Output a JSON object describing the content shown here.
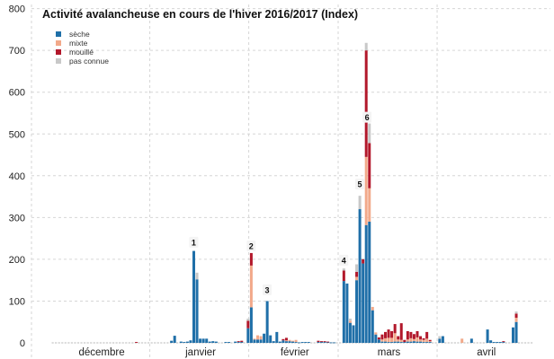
{
  "chart_data": {
    "type": "bar",
    "stacked": true,
    "title": "Activité avalancheuse en cours de l'hiver 2016/2017 (Index)",
    "xlabel": "",
    "ylabel": "",
    "ylim": [
      0,
      800
    ],
    "yticks": [
      0,
      100,
      200,
      300,
      400,
      500,
      600,
      700,
      800
    ],
    "months": [
      "décembre",
      "janvier",
      "février",
      "mars",
      "avril"
    ],
    "month_start_day_index": [
      0,
      31,
      62,
      90,
      121
    ],
    "total_days": 151,
    "legend_position": "top-left",
    "grid": true,
    "series": [
      {
        "name": "sèche",
        "color": "#1f6fa8"
      },
      {
        "name": "mixte",
        "color": "#f2a98a"
      },
      {
        "name": "mouillé",
        "color": "#b2182b"
      },
      {
        "name": "pas connue",
        "color": "#c8c8c8"
      }
    ],
    "days": [
      {
        "i": 26,
        "v": [
          0,
          0,
          2,
          0
        ]
      },
      {
        "i": 37,
        "v": [
          5,
          0,
          0,
          0
        ]
      },
      {
        "i": 38,
        "v": [
          17,
          0,
          0,
          0
        ]
      },
      {
        "i": 40,
        "v": [
          3,
          0,
          0,
          0
        ]
      },
      {
        "i": 41,
        "v": [
          2,
          0,
          0,
          0
        ]
      },
      {
        "i": 42,
        "v": [
          3,
          0,
          0,
          0
        ]
      },
      {
        "i": 43,
        "v": [
          6,
          0,
          0,
          0
        ]
      },
      {
        "i": 44,
        "v": [
          220,
          0,
          0,
          0
        ]
      },
      {
        "i": 45,
        "v": [
          152,
          0,
          0,
          16
        ]
      },
      {
        "i": 46,
        "v": [
          10,
          0,
          0,
          0
        ]
      },
      {
        "i": 47,
        "v": [
          10,
          0,
          0,
          0
        ]
      },
      {
        "i": 48,
        "v": [
          10,
          0,
          0,
          0
        ]
      },
      {
        "i": 49,
        "v": [
          3,
          0,
          0,
          0
        ]
      },
      {
        "i": 50,
        "v": [
          4,
          0,
          0,
          0
        ]
      },
      {
        "i": 51,
        "v": [
          3,
          0,
          0,
          0
        ]
      },
      {
        "i": 54,
        "v": [
          2,
          0,
          0,
          0
        ]
      },
      {
        "i": 55,
        "v": [
          2,
          0,
          0,
          0
        ]
      },
      {
        "i": 57,
        "v": [
          3,
          0,
          0,
          0
        ]
      },
      {
        "i": 58,
        "v": [
          2,
          0,
          2,
          0
        ]
      },
      {
        "i": 59,
        "v": [
          2,
          0,
          3,
          0
        ]
      },
      {
        "i": 61,
        "v": [
          35,
          0,
          18,
          5
        ]
      },
      {
        "i": 62,
        "v": [
          85,
          100,
          30,
          0
        ]
      },
      {
        "i": 63,
        "v": [
          8,
          2,
          0,
          0
        ]
      },
      {
        "i": 64,
        "v": [
          8,
          10,
          0,
          0
        ]
      },
      {
        "i": 65,
        "v": [
          8,
          8,
          0,
          0
        ]
      },
      {
        "i": 66,
        "v": [
          22,
          0,
          0,
          0
        ]
      },
      {
        "i": 67,
        "v": [
          100,
          0,
          0,
          0
        ]
      },
      {
        "i": 68,
        "v": [
          18,
          0,
          0,
          0
        ]
      },
      {
        "i": 69,
        "v": [
          4,
          0,
          0,
          0
        ]
      },
      {
        "i": 70,
        "v": [
          26,
          0,
          0,
          0
        ]
      },
      {
        "i": 71,
        "v": [
          3,
          0,
          0,
          0
        ]
      },
      {
        "i": 72,
        "v": [
          6,
          0,
          3,
          0
        ]
      },
      {
        "i": 73,
        "v": [
          4,
          2,
          6,
          0
        ]
      },
      {
        "i": 74,
        "v": [
          4,
          3,
          0,
          0
        ]
      },
      {
        "i": 75,
        "v": [
          3,
          2,
          0,
          0
        ]
      },
      {
        "i": 76,
        "v": [
          2,
          5,
          0,
          0
        ]
      },
      {
        "i": 77,
        "v": [
          1,
          0,
          0,
          0
        ]
      },
      {
        "i": 78,
        "v": [
          2,
          0,
          0,
          0
        ]
      },
      {
        "i": 79,
        "v": [
          2,
          0,
          0,
          0
        ]
      },
      {
        "i": 80,
        "v": [
          2,
          0,
          0,
          0
        ]
      },
      {
        "i": 83,
        "v": [
          2,
          0,
          3,
          0
        ]
      },
      {
        "i": 84,
        "v": [
          2,
          0,
          2,
          0
        ]
      },
      {
        "i": 85,
        "v": [
          2,
          0,
          2,
          0
        ]
      },
      {
        "i": 86,
        "v": [
          2,
          0,
          1,
          0
        ]
      },
      {
        "i": 87,
        "v": [
          1,
          0,
          0,
          0
        ]
      },
      {
        "i": 88,
        "v": [
          1,
          0,
          0,
          0
        ]
      },
      {
        "i": 91,
        "v": [
          148,
          0,
          25,
          5
        ]
      },
      {
        "i": 92,
        "v": [
          142,
          0,
          0,
          0
        ]
      },
      {
        "i": 93,
        "v": [
          48,
          5,
          0,
          5
        ]
      },
      {
        "i": 94,
        "v": [
          42,
          0,
          0,
          0
        ]
      },
      {
        "i": 95,
        "v": [
          150,
          8,
          12,
          18
        ]
      },
      {
        "i": 96,
        "v": [
          320,
          0,
          0,
          32
        ]
      },
      {
        "i": 97,
        "v": [
          190,
          0,
          10,
          2
        ]
      },
      {
        "i": 98,
        "v": [
          282,
          163,
          255,
          18
        ]
      },
      {
        "i": 99,
        "v": [
          290,
          80,
          108,
          47
        ]
      },
      {
        "i": 100,
        "v": [
          78,
          8,
          0,
          0
        ]
      },
      {
        "i": 101,
        "v": [
          20,
          5,
          0,
          0
        ]
      },
      {
        "i": 102,
        "v": [
          8,
          0,
          5,
          0
        ]
      },
      {
        "i": 103,
        "v": [
          3,
          5,
          12,
          0
        ]
      },
      {
        "i": 104,
        "v": [
          3,
          8,
          15,
          0
        ]
      },
      {
        "i": 105,
        "v": [
          2,
          10,
          20,
          0
        ]
      },
      {
        "i": 106,
        "v": [
          2,
          10,
          16,
          0
        ]
      },
      {
        "i": 107,
        "v": [
          3,
          20,
          22,
          0
        ]
      },
      {
        "i": 108,
        "v": [
          3,
          5,
          8,
          0
        ]
      },
      {
        "i": 109,
        "v": [
          2,
          5,
          40,
          0
        ]
      },
      {
        "i": 110,
        "v": [
          2,
          0,
          5,
          0
        ]
      },
      {
        "i": 111,
        "v": [
          3,
          5,
          20,
          0
        ]
      },
      {
        "i": 112,
        "v": [
          3,
          8,
          15,
          0
        ]
      },
      {
        "i": 113,
        "v": [
          4,
          5,
          12,
          0
        ]
      },
      {
        "i": 114,
        "v": [
          3,
          10,
          15,
          0
        ]
      },
      {
        "i": 115,
        "v": [
          3,
          5,
          8,
          0
        ]
      },
      {
        "i": 116,
        "v": [
          2,
          5,
          4,
          0
        ]
      },
      {
        "i": 117,
        "v": [
          2,
          8,
          16,
          0
        ]
      },
      {
        "i": 118,
        "v": [
          2,
          2,
          3,
          0
        ]
      },
      {
        "i": 121,
        "v": [
          10,
          0,
          0,
          6
        ]
      },
      {
        "i": 122,
        "v": [
          16,
          0,
          0,
          0
        ]
      },
      {
        "i": 128,
        "v": [
          0,
          10,
          0,
          0
        ]
      },
      {
        "i": 131,
        "v": [
          10,
          0,
          0,
          0
        ]
      },
      {
        "i": 136,
        "v": [
          32,
          0,
          0,
          0
        ]
      },
      {
        "i": 137,
        "v": [
          6,
          0,
          0,
          0
        ]
      },
      {
        "i": 138,
        "v": [
          2,
          0,
          0,
          0
        ]
      },
      {
        "i": 139,
        "v": [
          2,
          0,
          0,
          0
        ]
      },
      {
        "i": 140,
        "v": [
          2,
          0,
          0,
          0
        ]
      },
      {
        "i": 141,
        "v": [
          2,
          0,
          2,
          0
        ]
      },
      {
        "i": 144,
        "v": [
          37,
          0,
          0,
          0
        ]
      },
      {
        "i": 145,
        "v": [
          50,
          10,
          10,
          5
        ]
      }
    ],
    "annotations": [
      {
        "label": "1",
        "i": 44,
        "y": 241
      },
      {
        "label": "2",
        "i": 62,
        "y": 232
      },
      {
        "label": "3",
        "i": 67,
        "y": 127
      },
      {
        "label": "4",
        "i": 91,
        "y": 198
      },
      {
        "label": "5",
        "i": 96,
        "y": 380
      },
      {
        "label": "6",
        "i": 98.3,
        "y": 540
      }
    ]
  }
}
